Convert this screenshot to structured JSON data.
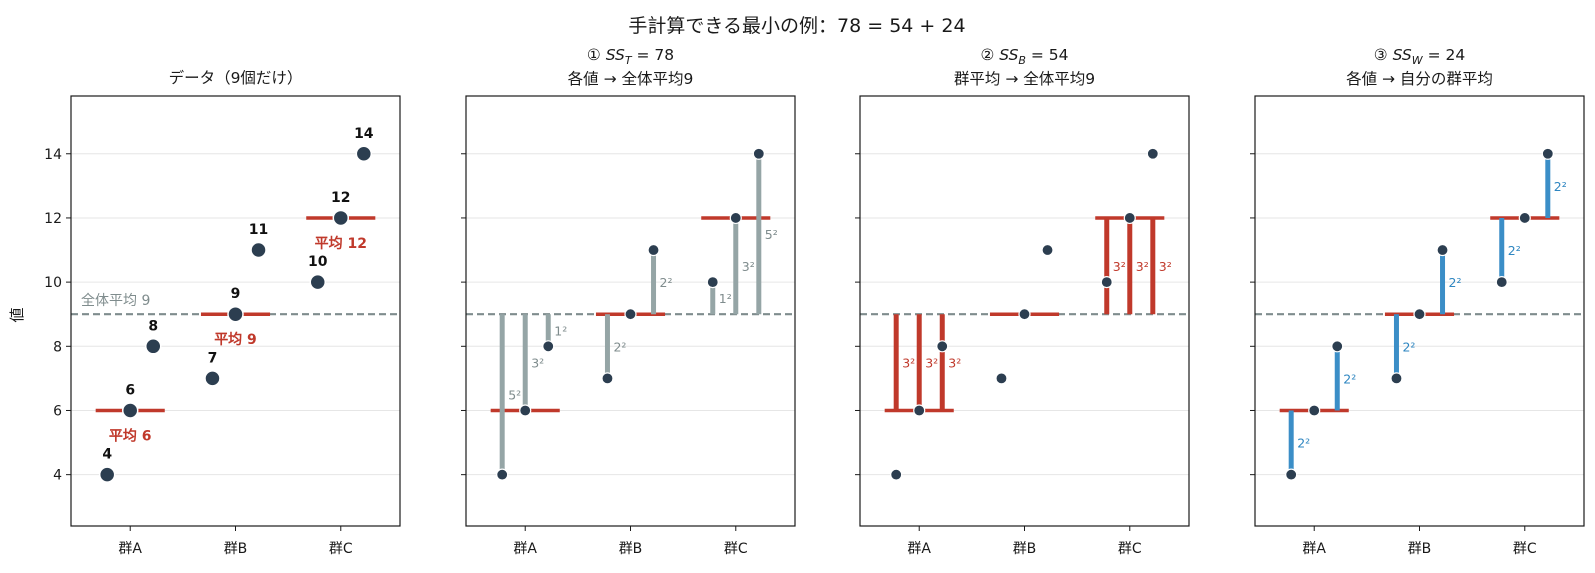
{
  "figure_title": "手計算できる最小の例：78 = 54 + 24",
  "y_axis_label": "値",
  "grand_mean_label": "全体平均 9",
  "colors": {
    "points": "#2c3e50",
    "group_mean": "#c0392b",
    "grand_mean": "#7f8c8d",
    "total_bar": "#95a5a6",
    "between_bar": "#c0392b",
    "within_bar": "#3b8ec7",
    "label_gray": "#7f8c8d",
    "label_red": "#c0392b",
    "label_blue": "#2e86c1"
  },
  "chart_data": [
    {
      "type": "scatter",
      "panel": "data",
      "title": "データ（9個だけ）",
      "categories": [
        "群A",
        "群B",
        "群C"
      ],
      "groups": [
        {
          "name": "群A",
          "values": [
            4,
            6,
            8
          ],
          "mean": 6,
          "mean_label": "平均 6"
        },
        {
          "name": "群B",
          "values": [
            7,
            9,
            11
          ],
          "mean": 9,
          "mean_label": "平均 9"
        },
        {
          "name": "群C",
          "values": [
            10,
            12,
            14
          ],
          "mean": 12,
          "mean_label": "平均 12"
        }
      ],
      "point_labels": [
        "4",
        "6",
        "8",
        "7",
        "9",
        "11",
        "10",
        "12",
        "14"
      ],
      "grand_mean": 9,
      "ylim": [
        2.4,
        15.8
      ],
      "yticks": [
        "4",
        "6",
        "8",
        "10",
        "12",
        "14"
      ],
      "ylabel": "値",
      "grid": true
    },
    {
      "type": "scatter",
      "panel": "total",
      "title_line1_prefix": "①",
      "title_line1_ss": "SS",
      "title_line1_sub": "T",
      "title_line1_value": "= 78",
      "title_line2": "各値 → 全体平均9",
      "segments": [
        {
          "group": "群A",
          "value": 4,
          "to": 9,
          "label": "5²"
        },
        {
          "group": "群A",
          "value": 6,
          "to": 9,
          "label": "3²"
        },
        {
          "group": "群A",
          "value": 8,
          "to": 9,
          "label": "1²"
        },
        {
          "group": "群B",
          "value": 7,
          "to": 9,
          "label": "2²"
        },
        {
          "group": "群B",
          "value": 9,
          "to": 9,
          "label": ""
        },
        {
          "group": "群B",
          "value": 11,
          "to": 9,
          "label": "2²"
        },
        {
          "group": "群C",
          "value": 10,
          "to": 9,
          "label": "1²"
        },
        {
          "group": "群C",
          "value": 12,
          "to": 9,
          "label": "3²"
        },
        {
          "group": "群C",
          "value": 14,
          "to": 9,
          "label": "5²"
        }
      ],
      "sum": 78
    },
    {
      "type": "scatter",
      "panel": "between",
      "title_line1_prefix": "②",
      "title_line1_ss": "SS",
      "title_line1_sub": "B",
      "title_line1_value": "= 54",
      "title_line2": "群平均 → 全体平均9",
      "segments": [
        {
          "group": "群A",
          "from": 6,
          "to": 9,
          "label": "3²",
          "count": 3
        },
        {
          "group": "群B",
          "from": 9,
          "to": 9,
          "label": "",
          "count": 3
        },
        {
          "group": "群C",
          "from": 12,
          "to": 9,
          "label": "3²",
          "count": 3
        }
      ],
      "sum": 54
    },
    {
      "type": "scatter",
      "panel": "within",
      "title_line1_prefix": "③",
      "title_line1_ss": "SS",
      "title_line1_sub": "W",
      "title_line1_value": "= 24",
      "title_line2": "各値 → 自分の群平均",
      "segments": [
        {
          "group": "群A",
          "value": 4,
          "to": 6,
          "label": "2²"
        },
        {
          "group": "群A",
          "value": 8,
          "to": 6,
          "label": "2²"
        },
        {
          "group": "群B",
          "value": 7,
          "to": 9,
          "label": "2²"
        },
        {
          "group": "群B",
          "value": 11,
          "to": 9,
          "label": "2²"
        },
        {
          "group": "群C",
          "value": 10,
          "to": 12,
          "label": "2²"
        },
        {
          "group": "群C",
          "value": 14,
          "to": 12,
          "label": "2²"
        }
      ],
      "sum": 24
    }
  ]
}
